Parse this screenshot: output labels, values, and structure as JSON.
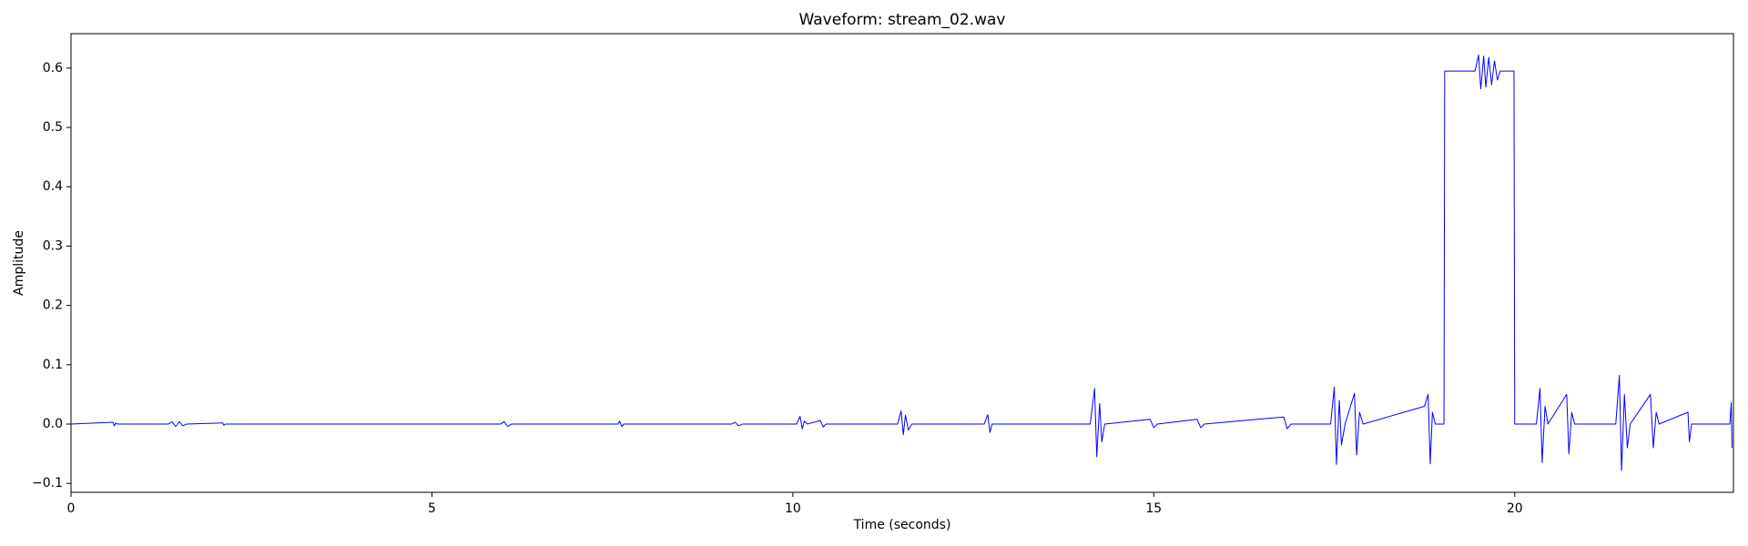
{
  "chart_data": {
    "type": "line",
    "title": "Waveform: stream_02.wav",
    "xlabel": "Time (seconds)",
    "ylabel": "Amplitude",
    "color": "#0000ff",
    "x": [
      0,
      0.58,
      0.6,
      0.62,
      0.64,
      1.35,
      1.4,
      1.45,
      1.5,
      1.55,
      1.6,
      2.1,
      2.12,
      2.14,
      5.95,
      6.0,
      6.05,
      6.1,
      7.58,
      7.6,
      7.63,
      7.66,
      9.15,
      9.2,
      9.25,
      9.3,
      10.05,
      10.1,
      10.13,
      10.16,
      10.2,
      10.38,
      10.42,
      10.46,
      11.45,
      11.5,
      11.53,
      11.56,
      11.6,
      11.65,
      12.65,
      12.7,
      12.73,
      12.76,
      14.12,
      14.18,
      14.21,
      14.25,
      14.28,
      14.32,
      14.95,
      15.0,
      15.05,
      15.6,
      15.65,
      15.7,
      16.8,
      16.85,
      16.9,
      17.45,
      17.5,
      17.53,
      17.57,
      17.6,
      17.65,
      17.78,
      17.81,
      17.85,
      17.9,
      18.75,
      18.8,
      18.83,
      18.86,
      18.9,
      19.02,
      19.03,
      19.45,
      19.5,
      19.53,
      19.57,
      19.6,
      19.64,
      19.68,
      19.72,
      19.76,
      19.8,
      19.99,
      20.0,
      20.3,
      20.35,
      20.38,
      20.42,
      20.46,
      20.72,
      20.75,
      20.79,
      20.83,
      21.4,
      21.45,
      21.48,
      21.52,
      21.56,
      21.6,
      21.88,
      21.92,
      21.96,
      22.0,
      22.4,
      22.42,
      22.45,
      22.98,
      23.0,
      23.01
    ],
    "values": [
      0,
      0.003,
      -0.003,
      0.002,
      0,
      0,
      0.004,
      -0.004,
      0.004,
      -0.003,
      0,
      0.002,
      -0.002,
      0,
      0,
      0.004,
      -0.004,
      0,
      0,
      0.005,
      -0.004,
      0,
      0,
      0.003,
      -0.003,
      0,
      0,
      0.013,
      -0.008,
      0.005,
      0,
      0.006,
      -0.005,
      0,
      0,
      0.022,
      -0.018,
      0.015,
      -0.01,
      0,
      0,
      0.016,
      -0.014,
      0,
      0,
      0.06,
      -0.055,
      0.035,
      -0.03,
      0,
      0.008,
      -0.006,
      0,
      0.008,
      -0.006,
      0,
      0.012,
      -0.008,
      0,
      0,
      0.062,
      -0.068,
      0.04,
      -0.035,
      0,
      0.052,
      -0.052,
      0.02,
      0,
      0.03,
      0.05,
      -0.067,
      0.02,
      0,
      0,
      0.595,
      0.595,
      0.622,
      0.565,
      0.62,
      0.568,
      0.618,
      0.572,
      0.612,
      0.58,
      0.595,
      0.595,
      0,
      0,
      0.06,
      -0.065,
      0.03,
      0,
      0.05,
      -0.05,
      0.02,
      0,
      0,
      0.082,
      -0.078,
      0.05,
      -0.04,
      0,
      0.05,
      -0.04,
      0.02,
      0,
      0.02,
      -0.03,
      0,
      0,
      0.036,
      -0.04
    ],
    "xlim": [
      0,
      23.03
    ],
    "ylim": [
      -0.115,
      0.658
    ],
    "xticks": [
      0,
      5,
      10,
      15,
      20
    ],
    "yticks": [
      {
        "value": -0.1,
        "label": "−0.1"
      },
      {
        "value": 0,
        "label": "0.0"
      },
      0.1,
      0.2,
      0.3,
      0.4,
      0.5,
      0.6
    ],
    "grid": false
  }
}
